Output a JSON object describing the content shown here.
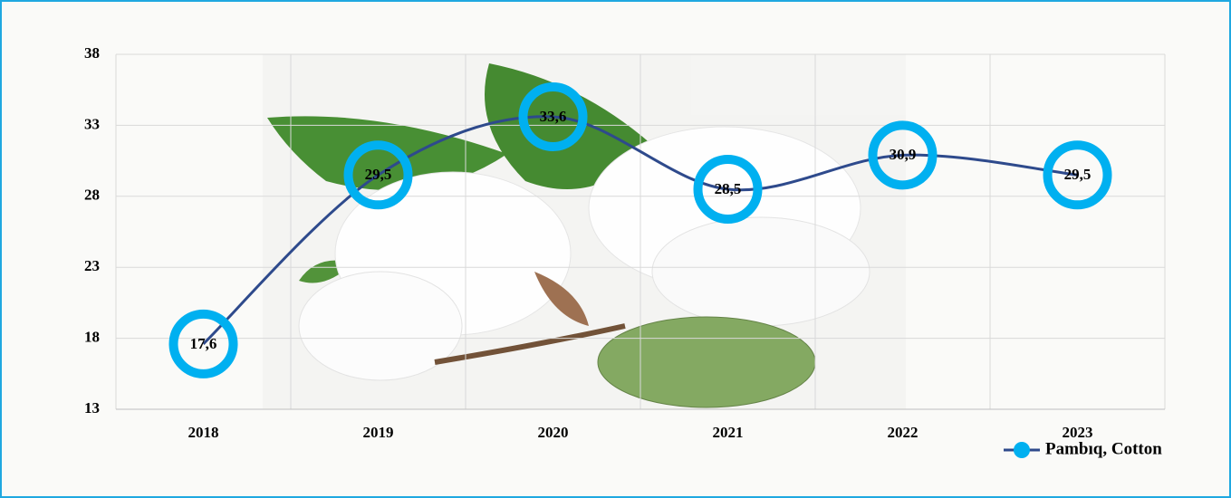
{
  "chart_data": {
    "type": "line",
    "categories": [
      "2018",
      "2019",
      "2020",
      "2021",
      "2022",
      "2023"
    ],
    "series": [
      {
        "name": "Pambıq, Cotton",
        "color": "#2e4a8c",
        "marker_color": "#00b0f0",
        "values": [
          17.6,
          29.5,
          33.6,
          28.5,
          30.9,
          29.5
        ],
        "value_labels": [
          "17,6",
          "29,5",
          "33,6",
          "28,5",
          "30,9",
          "29,5"
        ]
      }
    ],
    "ylim": [
      13,
      38
    ],
    "yticks": [
      13,
      18,
      23,
      28,
      33,
      38
    ],
    "grid": true,
    "legend": "bottom-right"
  }
}
